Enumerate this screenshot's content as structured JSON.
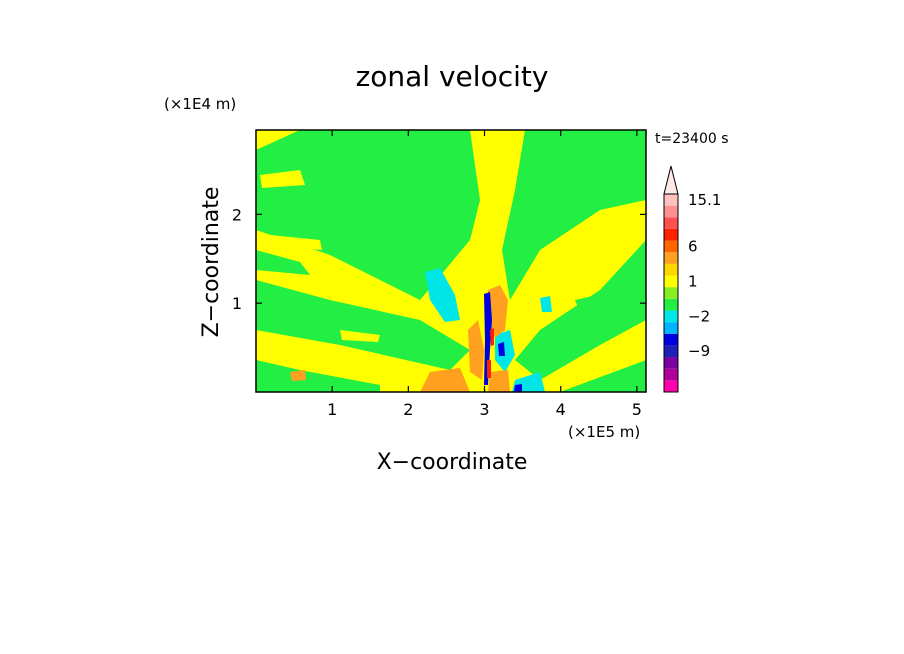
{
  "chart_data": {
    "type": "heatmap",
    "title": "zonal velocity",
    "xlabel": "X−coordinate",
    "ylabel": "Z−coordinate",
    "x_unit": "(×1E5 m)",
    "y_unit": "(×1E4 m)",
    "time_label": "t=23400 s",
    "xlim": [
      0,
      5.12
    ],
    "ylim": [
      0,
      2.95
    ],
    "x_ticks": [
      "1",
      "2",
      "3",
      "4",
      "5"
    ],
    "x_tick_values": [
      1,
      2,
      3,
      4,
      5
    ],
    "y_ticks": [
      "1",
      "2"
    ],
    "y_tick_values": [
      1,
      2
    ],
    "colorbar": {
      "labels": [
        "15.1",
        "6",
        "1",
        "−2",
        "−9"
      ],
      "label_values": [
        15.1,
        6,
        1,
        -2,
        -9
      ],
      "bands": [
        {
          "color": "#ff00aa"
        },
        {
          "color": "#b0009a"
        },
        {
          "color": "#7a00a0"
        },
        {
          "color": "#2020b8"
        },
        {
          "color": "#0000e0"
        },
        {
          "color": "#00b4ff"
        },
        {
          "color": "#00e6e6"
        },
        {
          "color": "#22ee44"
        },
        {
          "color": "#88ee22"
        },
        {
          "color": "#ffff00"
        },
        {
          "color": "#ffd700"
        },
        {
          "color": "#ffa020"
        },
        {
          "color": "#ff6600"
        },
        {
          "color": "#ff2000"
        },
        {
          "color": "#ff5050"
        },
        {
          "color": "#ff9090"
        },
        {
          "color": "#ffc0c0"
        }
      ],
      "over_color": "#ffe8e8"
    },
    "field_colors": {
      "background": "#ffff00",
      "weak_negative": "#22ee44",
      "moderate_negative": "#00e6e6",
      "strong_negative": "#0000e0",
      "positive": "#ffa020",
      "strong_positive": "#ff2000"
    }
  }
}
